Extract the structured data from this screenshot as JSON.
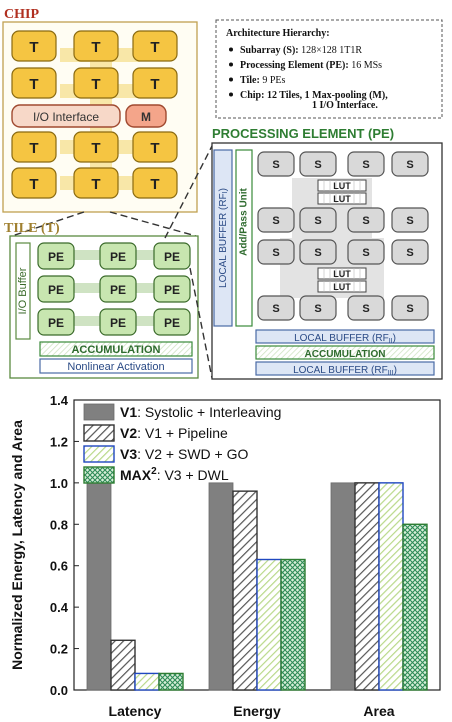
{
  "colors": {
    "chip_title": "#b03020",
    "tile_title": "#a08030",
    "pe_title": "#2e7d32",
    "tile_fill": "#f5c542",
    "pe_fill": "#c8e6b0",
    "sub_fill": "#d9d9d9",
    "buffer_border": "#4a6aa5",
    "accum_border": "#3a8a3a",
    "io_fill": "#f7d8c8",
    "bar_v1": "#808080",
    "bar_v3": "#2048c0",
    "bar_max": "#2e7d32"
  },
  "architecture": {
    "chip_title": "CHIP",
    "tile_title": "TILE (T)",
    "pe_title": "PROCESSING ELEMENT (PE)",
    "chip": {
      "tile_label": "T",
      "io_label": "I/O Interface",
      "maxpool_label": "M"
    },
    "tile": {
      "pe_label": "PE",
      "io_buffer_label": "I/O Buffer",
      "accumulation_label": "ACCUMULATION",
      "nonlinear_label": "Nonlinear Activation"
    },
    "pe": {
      "subarray_label": "S",
      "lut_label": "LUT",
      "local_buffer_i": "LOCAL BUFFER (RF",
      "local_buffer_i_sub": "I",
      "add_pass_label": "Add/Pass Unit",
      "local_buffer_ii": "LOCAL BUFFER (RF",
      "local_buffer_ii_sub": "II",
      "accumulation_label": "ACCUMULATION",
      "local_buffer_iii": "LOCAL BUFFER (RF",
      "local_buffer_iii_sub": "III"
    },
    "hierarchy": {
      "heading": "Architecture Hierarchy:",
      "items": [
        {
          "bold": "Subarray (S):",
          "rest": " 128×128 1T1R"
        },
        {
          "bold": "Processing Element (PE):",
          "rest": " 16 MSs"
        },
        {
          "bold": "Tile:",
          "rest": " 9 PEs"
        },
        {
          "bold": "Chip:",
          "rest": " 12 Tiles, 1 Max-pooling (M),"
        }
      ],
      "continuation": "1 I/O Interface."
    }
  },
  "chart_data": {
    "type": "bar",
    "categories": [
      "Latency",
      "Energy",
      "Area"
    ],
    "ylabel": "Normalized Energy, Latency and Area",
    "ylim": [
      0.0,
      1.4
    ],
    "yticks": [
      "0.0",
      "0.2",
      "0.4",
      "0.6",
      "0.8",
      "1.0",
      "1.2",
      "1.4"
    ],
    "legend_placement": "top-left",
    "series": [
      {
        "name": "V1",
        "name_sup": "",
        "desc": ": Systolic + Interleaving",
        "values": [
          1.0,
          1.0,
          1.0
        ]
      },
      {
        "name": "V2",
        "name_sup": "",
        "desc": ": V1 + Pipeline",
        "values": [
          0.24,
          0.96,
          1.0
        ]
      },
      {
        "name": "V3",
        "name_sup": "",
        "desc": ": V2 + SWD + GO",
        "values": [
          0.08,
          0.63,
          1.0
        ]
      },
      {
        "name": "MAX",
        "name_sup": "2",
        "desc": ": V3 + DWL",
        "values": [
          0.08,
          0.63,
          0.8
        ]
      }
    ]
  }
}
